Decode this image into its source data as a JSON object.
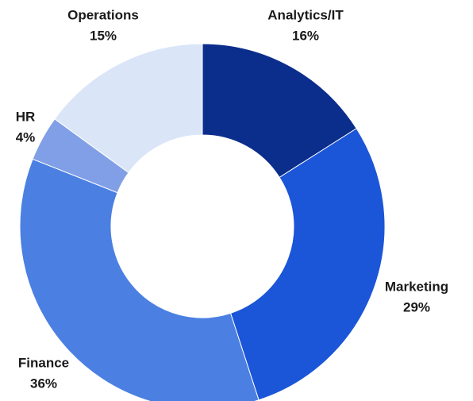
{
  "chart_data": {
    "type": "donut",
    "categories": [
      "Analytics/IT",
      "Marketing",
      "Finance",
      "HR",
      "Operations"
    ],
    "values": [
      16,
      29,
      36,
      4,
      15
    ],
    "value_labels": [
      "16%",
      "29%",
      "36%",
      "4%",
      "15%"
    ],
    "colors": [
      "#0b2d8c",
      "#1b55d8",
      "#4b80e2",
      "#809fe6",
      "#dae5f8"
    ]
  }
}
